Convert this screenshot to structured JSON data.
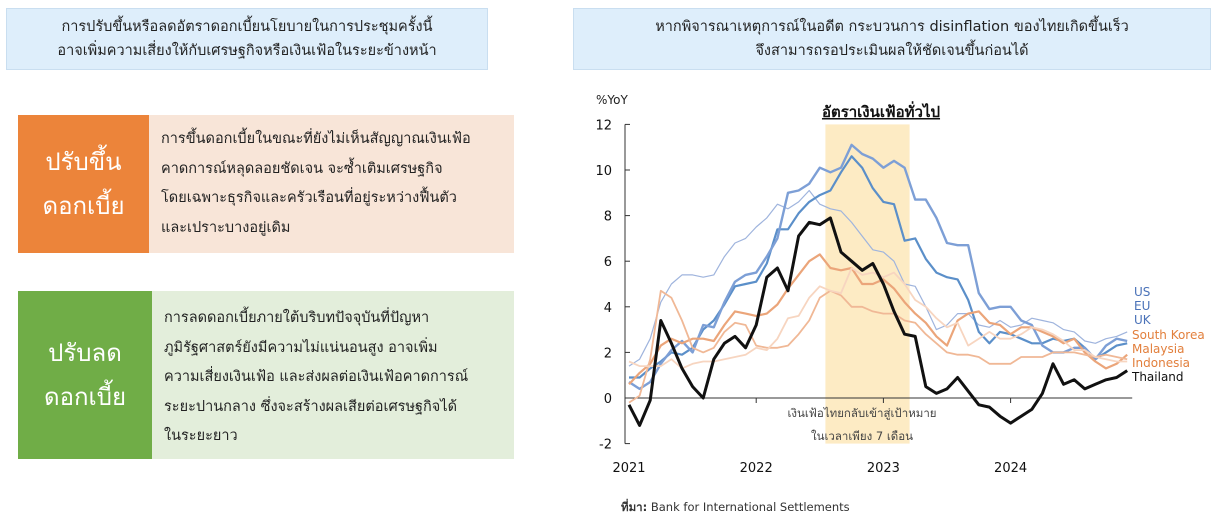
{
  "left_panel": {
    "banner": {
      "line1": "การปรับขึ้นหรือลดอัตราดอกเบี้ยนโยบายในการประชุมครั้งนี้",
      "line2": "อาจเพิ่มความเสี่ยงให้กับเศรษฐกิจหรือเงินเฟ้อในระยะข้างหน้า"
    },
    "cards": [
      {
        "tag_line1": "ปรับขึ้น",
        "tag_line2": "ดอกเบี้ย",
        "color": "#ec843a",
        "lines": [
          "การขึ้นดอกเบี้ยในขณะที่ยังไม่เห็นสัญญาณเงินเฟ้อ",
          "คาดการณ์หลุดลอยชัดเจน จะซ้ำเติมเศรษฐกิจ",
          "โดยเฉพาะธุรกิจและครัวเรือนที่อยู่ระหว่างฟื้นตัว",
          "และเปราะบางอยู่เดิม"
        ]
      },
      {
        "tag_line1": "ปรับลด",
        "tag_line2": "ดอกเบี้ย",
        "color": "#70ad47",
        "lines": [
          "การลดดอกเบี้ยภายใต้บริบทปัจจุบันที่ปัญหา",
          "ภูมิรัฐศาสตร์ยังมีความไม่แน่นอนสูง อาจเพิ่ม",
          "ความเสี่ยงเงินเฟ้อ และส่งผลต่อเงินเฟ้อคาดการณ์",
          "ระยะปานกลาง ซึ่งจะสร้างผลเสียต่อเศรษฐกิจได้",
          "ในระยะยาว"
        ]
      }
    ]
  },
  "right_panel": {
    "banner": {
      "line1": "หากพิจารณาเหตุการณ์ในอดีต กระบวนการ disinflation ของไทยเกิดขึ้นเร็ว",
      "line2": "จึงสามารถรอประเมินผลให้ชัดเจนขึ้นก่อนได้"
    },
    "source_label": "ที่มา:",
    "source_text": " Bank for International Settlements"
  },
  "chart_data": {
    "type": "line",
    "title": "อัตราเงินเฟ้อทั่วไป",
    "ylabel": "%YoY",
    "xlabel": "",
    "ylim": [
      -2,
      12
    ],
    "yticks": [
      -2,
      0,
      2,
      4,
      6,
      8,
      10,
      12
    ],
    "xticks": [
      "2021",
      "2022",
      "2023",
      "2024"
    ],
    "x_start": "2021-01",
    "x_frequency": "monthly",
    "grid": false,
    "legend_position": "right, inline labels",
    "shaded_region": {
      "from": "2022-08",
      "to": "2023-03",
      "color": "#fdebc4"
    },
    "annotation": {
      "line1": "เงินเฟ้อไทยกลับเข้าสู่เป้าหมาย",
      "line2": "ในเวลาเพียง 7 เดือน"
    },
    "series": [
      {
        "name": "US",
        "color": "#9fb4dd",
        "width": 1.2,
        "values": [
          1.4,
          1.7,
          2.6,
          4.2,
          5.0,
          5.4,
          5.4,
          5.3,
          5.4,
          6.2,
          6.8,
          7.0,
          7.5,
          7.9,
          8.5,
          8.3,
          8.6,
          9.1,
          8.5,
          8.3,
          8.2,
          7.7,
          7.1,
          6.5,
          6.4,
          6.0,
          5.0,
          4.9,
          4.0,
          3.0,
          3.2,
          3.7,
          3.7,
          3.2,
          3.1,
          3.4,
          3.1,
          3.2,
          3.5,
          3.4,
          3.3,
          3.0,
          2.9,
          2.5,
          2.4,
          2.6,
          2.7,
          2.9
        ]
      },
      {
        "name": "EU",
        "color": "#5b8fc9",
        "width": 2.2,
        "values": [
          0.9,
          0.9,
          1.3,
          1.6,
          2.0,
          1.9,
          2.2,
          3.0,
          3.4,
          4.1,
          4.9,
          5.0,
          5.1,
          5.9,
          7.4,
          7.4,
          8.1,
          8.6,
          8.9,
          9.1,
          9.9,
          10.6,
          10.1,
          9.2,
          8.6,
          8.5,
          6.9,
          7.0,
          6.1,
          5.5,
          5.3,
          5.2,
          4.3,
          2.9,
          2.4,
          2.9,
          2.8,
          2.6,
          2.4,
          2.4,
          2.6,
          2.5,
          2.6,
          2.2,
          1.7,
          2.0,
          2.3,
          2.4
        ]
      },
      {
        "name": "UK",
        "color": "#7d9fd6",
        "width": 2.4,
        "values": [
          0.7,
          0.4,
          0.7,
          1.5,
          2.1,
          2.5,
          2.0,
          3.2,
          3.1,
          4.2,
          5.1,
          5.4,
          5.5,
          6.2,
          7.0,
          9.0,
          9.1,
          9.4,
          10.1,
          9.9,
          10.1,
          11.1,
          10.7,
          10.5,
          10.1,
          10.4,
          10.1,
          8.7,
          8.7,
          7.9,
          6.8,
          6.7,
          6.7,
          4.6,
          3.9,
          4.0,
          4.0,
          3.4,
          3.2,
          2.3,
          2.0,
          2.0,
          2.2,
          2.2,
          1.7,
          2.3,
          2.6,
          2.5
        ]
      },
      {
        "name": "South Korea",
        "color": "#eba57a",
        "width": 2.2,
        "values": [
          0.6,
          1.1,
          1.5,
          2.3,
          2.6,
          2.4,
          2.6,
          2.6,
          2.5,
          3.2,
          3.8,
          3.7,
          3.6,
          3.7,
          4.1,
          4.8,
          5.4,
          6.0,
          6.3,
          5.7,
          5.6,
          5.7,
          5.0,
          5.0,
          5.2,
          4.8,
          4.2,
          3.7,
          3.3,
          2.7,
          2.3,
          3.4,
          3.7,
          3.8,
          3.3,
          3.2,
          2.8,
          3.1,
          3.1,
          2.9,
          2.7,
          2.4,
          2.6,
          2.0,
          1.6,
          1.3,
          1.5,
          1.9
        ]
      },
      {
        "name": "Malaysia",
        "color": "#f0b896",
        "width": 1.8,
        "values": [
          -0.2,
          0.1,
          1.7,
          4.7,
          4.4,
          3.4,
          2.2,
          2.0,
          2.2,
          2.9,
          3.3,
          3.2,
          2.3,
          2.2,
          2.2,
          2.3,
          2.8,
          3.4,
          4.4,
          4.7,
          4.5,
          4.0,
          4.0,
          3.8,
          3.7,
          3.7,
          3.4,
          3.3,
          2.8,
          2.4,
          2.0,
          1.9,
          1.9,
          1.8,
          1.5,
          1.5,
          1.5,
          1.8,
          1.8,
          1.8,
          2.0,
          2.0,
          2.0,
          1.9,
          1.8,
          1.9,
          1.8,
          1.7
        ]
      },
      {
        "name": "Indonesia",
        "color": "#f7d5c0",
        "width": 1.8,
        "values": [
          1.6,
          1.4,
          1.4,
          1.4,
          1.7,
          1.3,
          1.5,
          1.6,
          1.6,
          1.7,
          1.8,
          1.9,
          2.2,
          2.1,
          2.6,
          3.5,
          3.6,
          4.4,
          4.9,
          4.7,
          4.6,
          5.7,
          5.4,
          5.5,
          5.3,
          5.5,
          5.0,
          4.3,
          4.0,
          3.5,
          3.1,
          3.3,
          2.3,
          2.6,
          2.9,
          2.6,
          2.6,
          2.8,
          3.1,
          3.0,
          2.8,
          2.5,
          2.1,
          2.1,
          1.8,
          1.7,
          1.6,
          1.6
        ]
      },
      {
        "name": "Thailand",
        "color": "#111111",
        "width": 3.0,
        "values": [
          -0.3,
          -1.2,
          -0.1,
          3.4,
          2.4,
          1.3,
          0.5,
          0.0,
          1.7,
          2.4,
          2.7,
          2.2,
          3.2,
          5.3,
          5.7,
          4.7,
          7.1,
          7.7,
          7.6,
          7.9,
          6.4,
          6.0,
          5.6,
          5.9,
          5.0,
          3.8,
          2.8,
          2.7,
          0.5,
          0.2,
          0.4,
          0.9,
          0.3,
          -0.3,
          -0.4,
          -0.8,
          -1.1,
          -0.8,
          -0.5,
          0.2,
          1.5,
          0.6,
          0.8,
          0.4,
          0.6,
          0.8,
          0.9,
          1.2
        ]
      }
    ]
  }
}
